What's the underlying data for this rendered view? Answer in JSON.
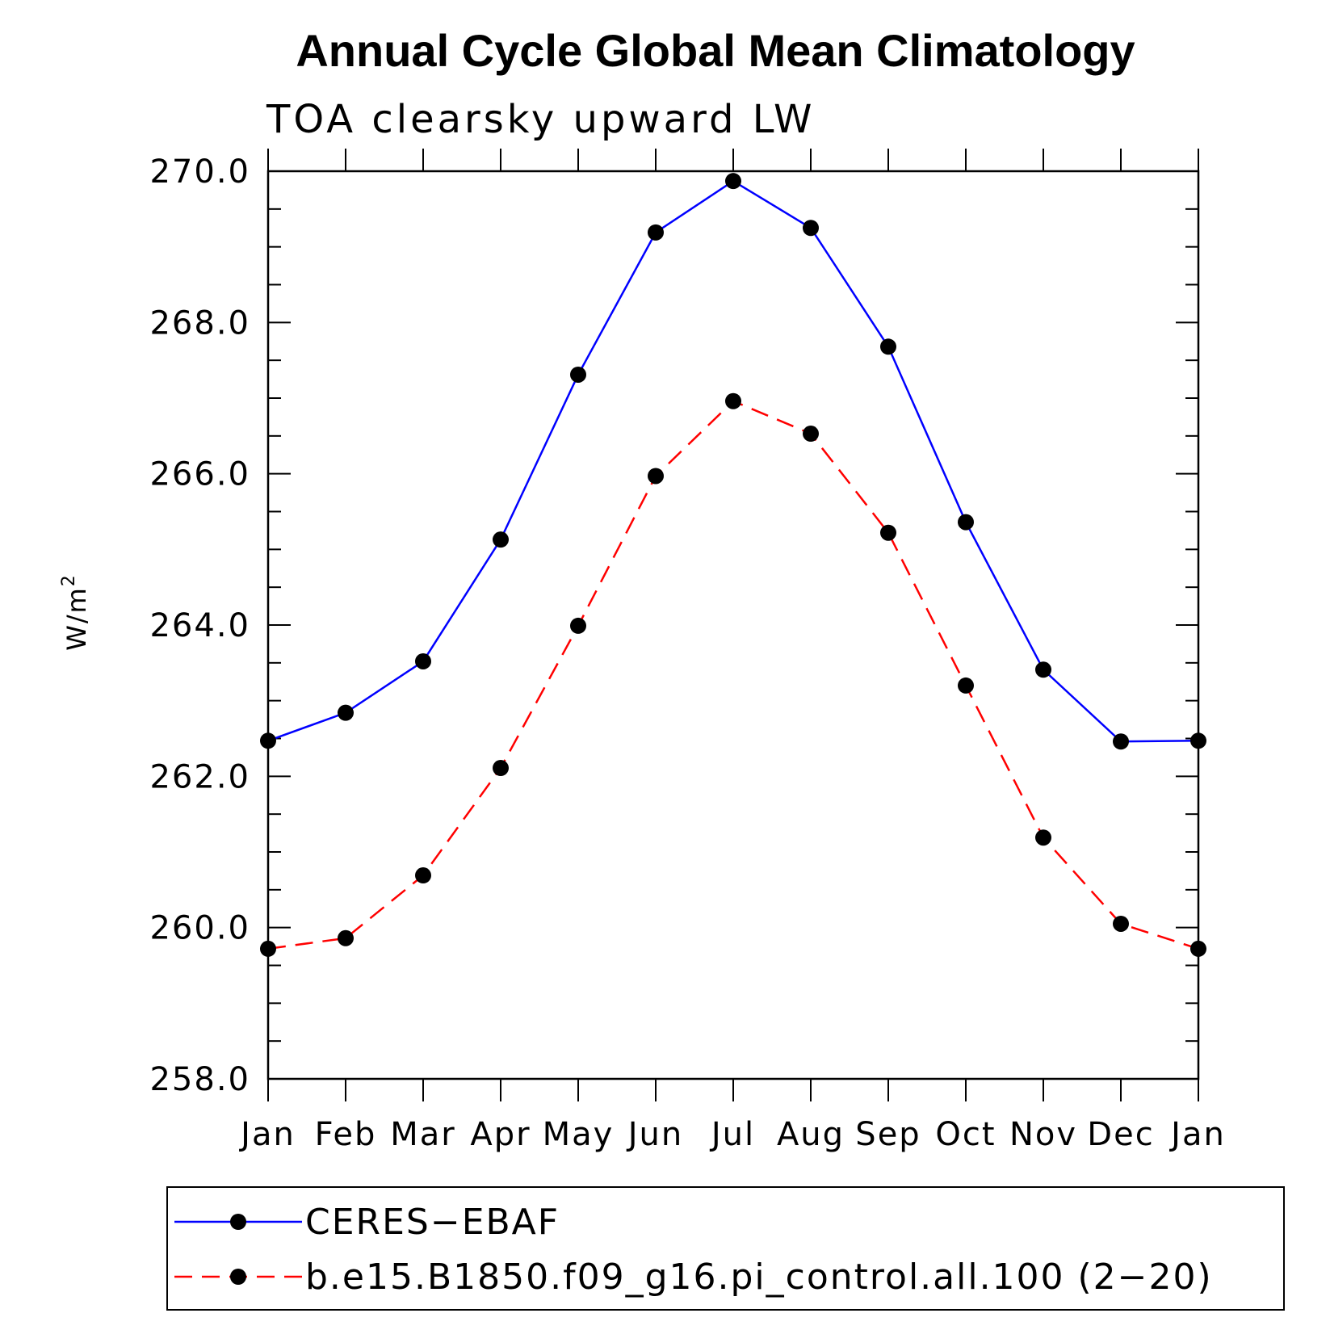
{
  "chart_data": {
    "type": "line",
    "title": "Annual Cycle Global Mean Climatology",
    "subtitle": "TOA clearsky upward LW",
    "xlabel": "",
    "ylabel": "W/m",
    "ylabel_superscript": "2",
    "ylim": [
      258.0,
      270.0
    ],
    "yticks": [
      "258.0",
      "260.0",
      "262.0",
      "264.0",
      "266.0",
      "268.0",
      "270.0"
    ],
    "ytick_values": [
      258,
      260,
      262,
      264,
      266,
      268,
      270
    ],
    "categories": [
      "Jan",
      "Feb",
      "Mar",
      "Apr",
      "May",
      "Jun",
      "Jul",
      "Aug",
      "Sep",
      "Oct",
      "Nov",
      "Dec",
      "Jan"
    ],
    "series": [
      {
        "name": "CERES−EBAF",
        "color": "#0000ff",
        "dash": "solid",
        "values": [
          262.47,
          262.84,
          263.52,
          265.13,
          267.31,
          269.19,
          269.87,
          269.25,
          267.68,
          265.36,
          263.41,
          262.46,
          262.47
        ]
      },
      {
        "name": "b.e15.B1850.f09_g16.pi_control.all.100 (2−20)",
        "color": "#ff0000",
        "dash": "dashed",
        "values": [
          259.72,
          259.86,
          260.69,
          262.11,
          263.99,
          265.97,
          266.96,
          266.53,
          265.22,
          263.2,
          261.19,
          260.05,
          259.72
        ]
      }
    ],
    "marker_color": "#000000",
    "legend_position": "bottom"
  }
}
